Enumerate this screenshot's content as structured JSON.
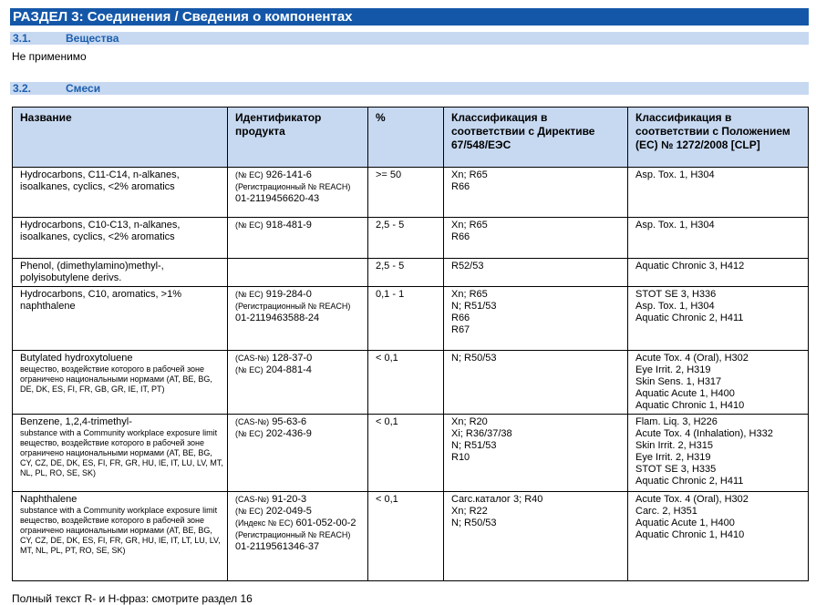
{
  "section": {
    "title": "РАЗДЕЛ 3: Соединения / Сведения о компонентах"
  },
  "sub1": {
    "num": "3.1.",
    "title": "Вещества",
    "text": "Не применимо"
  },
  "sub2": {
    "num": "3.2.",
    "title": "Смеси"
  },
  "table": {
    "headers": {
      "name": "Название",
      "identifier": "Идентификатор продукта",
      "percent": "%",
      "class_dir": "Классификация в соответствии с Директиве 67/548/ЕЭС",
      "class_clp": "Классификация в соответствии с Положением (ЕС) № 1272/2008 [CLP]"
    },
    "rows": [
      {
        "name": "Hydrocarbons, C11-C14, n-alkanes, isoalkanes, cyclics, <2% aromatics",
        "notes": [],
        "ids": [
          {
            "label": "(№ ЕС)",
            "value": "926-141-6"
          },
          {
            "label": "(Регистрационный № REACH)",
            "value": "01-2119456620-43"
          }
        ],
        "percent": ">= 50",
        "class_dir": [
          "Xn; R65",
          "R66"
        ],
        "class_clp": [
          "Asp. Tox. 1, H304"
        ]
      },
      {
        "name": "Hydrocarbons, C10-C13, n-alkanes, isoalkanes, cyclics, <2% aromatics",
        "notes": [],
        "ids": [
          {
            "label": "(№ ЕС)",
            "value": "918-481-9"
          }
        ],
        "percent": "2,5 - 5",
        "class_dir": [
          "Xn; R65",
          "R66"
        ],
        "class_clp": [
          "Asp. Tox. 1, H304"
        ]
      },
      {
        "name": "Phenol, (dimethylamino)methyl-, polyisobutylene derivs.",
        "notes": [],
        "ids": [],
        "percent": "2,5 - 5",
        "class_dir": [
          "R52/53"
        ],
        "class_clp": [
          "Aquatic Chronic 3, H412"
        ]
      },
      {
        "name": "Hydrocarbons, C10, aromatics, >1% naphthalene",
        "notes": [],
        "ids": [
          {
            "label": "(№ ЕС)",
            "value": "919-284-0"
          },
          {
            "label": "(Регистрационный № REACH)",
            "value": "01-2119463588-24"
          }
        ],
        "percent": "0,1 - 1",
        "class_dir": [
          "Xn; R65",
          "N; R51/53",
          "R66",
          "R67"
        ],
        "class_clp": [
          "STOT SE 3, H336",
          "Asp. Tox. 1, H304",
          "Aquatic Chronic 2, H411"
        ]
      },
      {
        "name": "Butylated hydroxytoluene",
        "notes": [
          "вещество, воздействие которого в рабочей зоне ограничено национальными нормами (AT, BE, BG, DE, DK, ES, FI, FR, GB, GR, IE, IT, PT)"
        ],
        "ids": [
          {
            "label": "(CAS-№)",
            "value": "128-37-0"
          },
          {
            "label": "(№ ЕС)",
            "value": "204-881-4"
          }
        ],
        "percent": "< 0,1",
        "class_dir": [
          "N; R50/53"
        ],
        "class_clp": [
          "Acute Tox. 4 (Oral), H302",
          "Eye Irrit. 2, H319",
          "Skin Sens. 1, H317",
          "Aquatic Acute 1, H400",
          "Aquatic Chronic 1, H410"
        ]
      },
      {
        "name": "Benzene, 1,2,4-trimethyl-",
        "notes": [
          "substance with a Community workplace exposure limit",
          "вещество, воздействие которого в рабочей зоне ограничено национальными нормами (AT, BE, BG, CY, CZ, DE, DK, ES, FI, FR, GR, HU, IE, IT, LU, LV, MT, NL, PL, RO, SE, SK)"
        ],
        "ids": [
          {
            "label": "(CAS-№)",
            "value": "95-63-6"
          },
          {
            "label": "(№ ЕС)",
            "value": "202-436-9"
          }
        ],
        "percent": "< 0,1",
        "class_dir": [
          "Xn; R20",
          "Xi; R36/37/38",
          "N; R51/53",
          "R10"
        ],
        "class_clp": [
          "Flam. Liq. 3, H226",
          "Acute Tox. 4 (Inhalation), H332",
          "Skin Irrit. 2, H315",
          "Eye Irrit. 2, H319",
          "STOT SE 3, H335",
          "Aquatic Chronic 2, H411"
        ]
      },
      {
        "name": "Naphthalene",
        "notes": [
          "substance with a Community workplace exposure limit",
          "вещество, воздействие которого в рабочей зоне ограничено национальными нормами (AT, BE, BG, CY, CZ, DE, DK, ES, FI, FR, GR, HU, IE, IT, LT, LU, LV, MT, NL, PL, PT, RO, SE, SK)"
        ],
        "ids": [
          {
            "label": "(CAS-№)",
            "value": "91-20-3"
          },
          {
            "label": "(№ ЕС)",
            "value": "202-049-5"
          },
          {
            "label": "(Индекс № ЕС)",
            "value": "601-052-00-2"
          },
          {
            "label": "(Регистрационный № REACH)",
            "value": "01-2119561346-37"
          }
        ],
        "percent": "< 0,1",
        "class_dir": [
          "Carc.каталог 3; R40",
          "Xn; R22",
          "N; R50/53"
        ],
        "class_clp": [
          "Acute Tox. 4 (Oral), H302",
          "Carc. 2, H351",
          "Aquatic Acute 1, H400",
          "Aquatic Chronic 1, H410"
        ]
      }
    ]
  },
  "footer": "Полный текст R- и H-фраз: смотрите раздел 16"
}
